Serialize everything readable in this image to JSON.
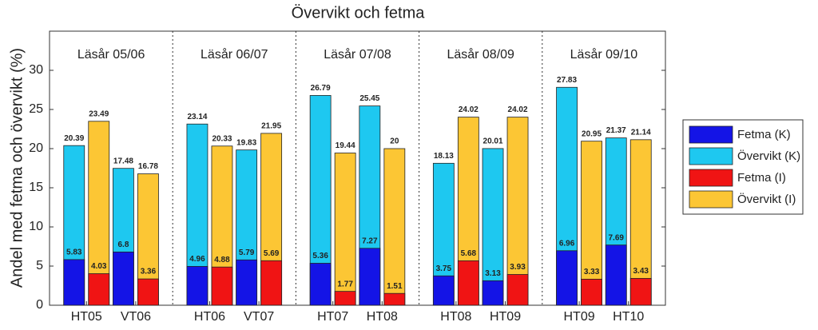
{
  "chart_data": {
    "type": "bar",
    "title": "Övervikt och fetma",
    "ylabel": "Andel med fetma och övervikt (%)",
    "groups": [
      "Läsår 05/06",
      "Läsår 06/07",
      "Läsår 07/08",
      "Läsår 08/09",
      "Läsår 09/10"
    ],
    "categories": [
      "HT05",
      "VT06",
      "HT06",
      "VT07",
      "HT07",
      "HT08",
      "HT08",
      "HT09",
      "HT09",
      "HT10"
    ],
    "series": [
      {
        "name": "Fetma (K)",
        "color": "#1414e6",
        "values": [
          5.83,
          6.8,
          4.96,
          5.79,
          5.36,
          7.27,
          3.75,
          3.13,
          6.96,
          7.69
        ]
      },
      {
        "name": "Övervikt (K)",
        "color": "#1ec8f0",
        "values": [
          20.39,
          17.48,
          23.14,
          19.83,
          26.79,
          25.45,
          18.13,
          20.01,
          27.83,
          21.37
        ]
      },
      {
        "name": "Fetma (I)",
        "color": "#f01414",
        "values": [
          4.03,
          3.36,
          4.88,
          5.69,
          1.77,
          1.51,
          5.68,
          3.93,
          3.33,
          3.43
        ]
      },
      {
        "name": "Övervikt (I)",
        "color": "#fcc634",
        "values": [
          23.49,
          16.78,
          20.33,
          21.95,
          19.44,
          20,
          24.02,
          24.02,
          20.95,
          21.14
        ]
      }
    ],
    "ylim": [
      0,
      35
    ],
    "yticks": [
      0,
      5,
      10,
      15,
      20,
      25,
      30
    ],
    "grid": false,
    "legend": "right"
  }
}
